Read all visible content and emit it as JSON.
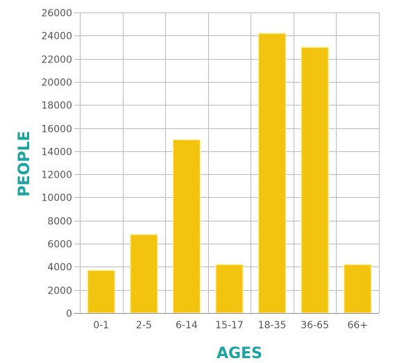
{
  "chart_data": {
    "type": "bar",
    "categories": [
      "0-1",
      "2-5",
      "6-14",
      "15-17",
      "18-35",
      "36-65",
      "66+"
    ],
    "values": [
      3700,
      6800,
      15000,
      4200,
      24200,
      23000,
      4200
    ],
    "title": "",
    "xlabel": "AGES",
    "ylabel": "PEOPLE",
    "ylim": [
      0,
      26000
    ],
    "yticks": [
      0,
      2000,
      4000,
      6000,
      8000,
      10000,
      12000,
      14000,
      16000,
      18000,
      20000,
      22000,
      24000,
      26000
    ],
    "ytick_labels": [
      "0",
      "2000",
      "4000",
      "6000",
      "8000",
      "10000",
      "12000",
      "14000",
      "16000",
      "18000",
      "20000",
      "22000",
      "24000",
      "26000"
    ],
    "grid": true,
    "legend": "none",
    "colors": {
      "bar": "#f2c40f",
      "axis_title": "#1ea3a3",
      "grid": "#b9b9b9",
      "tick_text": "#555555"
    }
  }
}
